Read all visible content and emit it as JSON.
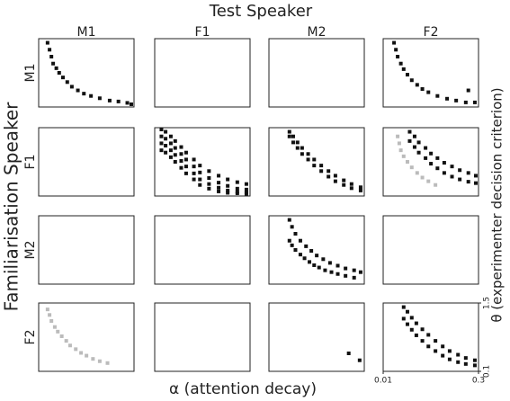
{
  "chart_data": {
    "type": "scatter",
    "title": "Test Speaker",
    "xlabel": "α (attention decay)",
    "ylabel": "Familiarisation Speaker",
    "y2label": "θ (experimenter decision criterion)",
    "columns": [
      "M1",
      "F1",
      "M2",
      "F2"
    ],
    "rows": [
      "M1",
      "F1",
      "M2",
      "F2"
    ],
    "xscale": "log",
    "xlim": [
      0.01,
      0.3
    ],
    "xticks": [
      0.01,
      0.3
    ],
    "ylim": [
      0.1,
      1.5
    ],
    "yticks": [
      0.1,
      1.5
    ],
    "panels": [
      [
        {
          "series": [
            {
              "color": "#111111",
              "x": [
                0.013,
                0.014,
                0.015,
                0.016,
                0.018,
                0.02,
                0.023,
                0.027,
                0.032,
                0.04,
                0.05,
                0.065,
                0.09,
                0.13,
                0.18,
                0.25,
                0.29
              ],
              "y": [
                1.45,
                1.3,
                1.15,
                1.0,
                0.9,
                0.8,
                0.7,
                0.6,
                0.5,
                0.42,
                0.35,
                0.3,
                0.25,
                0.2,
                0.18,
                0.15,
                0.12
              ]
            }
          ]
        },
        {
          "series": []
        },
        {
          "series": []
        },
        {
          "series": [
            {
              "color": "#111111",
              "x": [
                0.014,
                0.015,
                0.016,
                0.018,
                0.02,
                0.023,
                0.027,
                0.033,
                0.04,
                0.05,
                0.07,
                0.1,
                0.14,
                0.2,
                0.22,
                0.28
              ],
              "y": [
                1.45,
                1.3,
                1.15,
                1.0,
                0.88,
                0.76,
                0.64,
                0.54,
                0.45,
                0.38,
                0.3,
                0.24,
                0.2,
                0.16,
                0.42,
                0.16
              ]
            }
          ]
        }
      ],
      [
        {
          "series": []
        },
        {
          "series": [
            {
              "color": "#111111",
              "x": [
                0.012,
                0.014,
                0.017,
                0.02,
                0.025,
                0.03,
                0.04,
                0.05,
                0.07,
                0.1,
                0.14,
                0.2,
                0.28,
                0.012,
                0.014,
                0.017,
                0.02,
                0.025,
                0.03,
                0.04,
                0.05,
                0.07,
                0.1,
                0.14,
                0.2,
                0.28,
                0.012,
                0.014,
                0.017,
                0.02,
                0.025,
                0.03,
                0.04,
                0.05,
                0.07,
                0.1,
                0.14,
                0.2,
                0.28,
                0.012,
                0.014,
                0.017,
                0.02,
                0.025,
                0.03,
                0.04,
                0.05,
                0.07,
                0.1,
                0.14,
                0.2,
                0.28
              ],
              "y": [
                1.5,
                1.45,
                1.35,
                1.25,
                1.12,
                1.0,
                0.85,
                0.72,
                0.6,
                0.5,
                0.42,
                0.36,
                0.32,
                1.35,
                1.3,
                1.2,
                1.1,
                0.97,
                0.85,
                0.7,
                0.57,
                0.45,
                0.35,
                0.28,
                0.22,
                0.2,
                1.2,
                1.15,
                1.05,
                0.95,
                0.82,
                0.7,
                0.55,
                0.42,
                0.32,
                0.24,
                0.18,
                0.15,
                0.14,
                1.05,
                1.0,
                0.9,
                0.8,
                0.67,
                0.55,
                0.42,
                0.3,
                0.22,
                0.16,
                0.13,
                0.12,
                0.11
              ]
            }
          ]
        },
        {
          "series": [
            {
              "color": "#111111",
              "x": [
                0.02,
                0.023,
                0.027,
                0.032,
                0.04,
                0.05,
                0.065,
                0.085,
                0.11,
                0.15,
                0.2,
                0.28,
                0.02,
                0.023,
                0.027,
                0.032,
                0.04,
                0.05,
                0.065,
                0.085,
                0.11,
                0.15,
                0.2,
                0.28
              ],
              "y": [
                1.45,
                1.35,
                1.22,
                1.1,
                0.97,
                0.85,
                0.72,
                0.6,
                0.5,
                0.4,
                0.32,
                0.25,
                1.35,
                1.22,
                1.1,
                0.97,
                0.85,
                0.72,
                0.6,
                0.48,
                0.38,
                0.3,
                0.23,
                0.18
              ]
            }
          ]
        },
        {
          "series": [
            {
              "color": "#bbbbbb",
              "x": [
                0.016,
                0.017,
                0.018,
                0.02,
                0.023,
                0.027,
                0.033,
                0.04,
                0.05,
                0.065
              ],
              "y": [
                1.35,
                1.2,
                1.05,
                0.92,
                0.8,
                0.68,
                0.56,
                0.46,
                0.38,
                0.3
              ]
            },
            {
              "color": "#111111",
              "x": [
                0.025,
                0.03,
                0.035,
                0.045,
                0.055,
                0.07,
                0.09,
                0.12,
                0.16,
                0.22,
                0.29,
                0.025,
                0.03,
                0.035,
                0.045,
                0.055,
                0.07,
                0.09,
                0.12,
                0.16,
                0.22,
                0.29
              ],
              "y": [
                1.45,
                1.35,
                1.22,
                1.1,
                0.98,
                0.88,
                0.78,
                0.7,
                0.62,
                0.56,
                0.5,
                1.25,
                1.12,
                1.0,
                0.88,
                0.76,
                0.66,
                0.56,
                0.48,
                0.42,
                0.37,
                0.34
              ]
            }
          ]
        }
      ],
      [
        {
          "series": []
        },
        {
          "series": []
        },
        {
          "series": [
            {
              "color": "#111111",
              "x": [
                0.02,
                0.022,
                0.025,
                0.03,
                0.037,
                0.045,
                0.055,
                0.07,
                0.09,
                0.12,
                0.16,
                0.22,
                0.28,
                0.02,
                0.022,
                0.025,
                0.03,
                0.035,
                0.042,
                0.05,
                0.06,
                0.075,
                0.095,
                0.12,
                0.16,
                0.22
              ],
              "y": [
                1.45,
                1.3,
                1.15,
                1.0,
                0.88,
                0.78,
                0.68,
                0.6,
                0.52,
                0.46,
                0.4,
                0.36,
                0.32,
                1.0,
                0.9,
                0.8,
                0.7,
                0.62,
                0.54,
                0.47,
                0.42,
                0.36,
                0.32,
                0.28,
                0.24,
                0.2
              ]
            }
          ]
        },
        {
          "series": []
        }
      ],
      [
        {
          "series": [
            {
              "color": "#bbbbbb",
              "x": [
                0.013,
                0.014,
                0.015,
                0.017,
                0.019,
                0.022,
                0.026,
                0.03,
                0.037,
                0.045,
                0.055,
                0.07,
                0.09,
                0.12
              ],
              "y": [
                1.4,
                1.28,
                1.15,
                1.02,
                0.92,
                0.82,
                0.72,
                0.62,
                0.54,
                0.46,
                0.4,
                0.33,
                0.28,
                0.24
              ]
            }
          ]
        },
        {
          "series": []
        },
        {
          "series": [
            {
              "color": "#111111",
              "x": [
                0.18,
                0.27
              ],
              "y": [
                0.45,
                0.3
              ]
            }
          ]
        },
        {
          "series": [
            {
              "color": "#111111",
              "x": [
                0.02,
                0.023,
                0.027,
                0.032,
                0.04,
                0.05,
                0.065,
                0.085,
                0.11,
                0.15,
                0.2,
                0.28,
                0.02,
                0.023,
                0.027,
                0.032,
                0.04,
                0.05,
                0.065,
                0.085,
                0.11,
                0.15,
                0.2,
                0.28
              ],
              "y": [
                1.45,
                1.35,
                1.22,
                1.1,
                0.97,
                0.85,
                0.72,
                0.6,
                0.5,
                0.42,
                0.35,
                0.3,
                1.2,
                1.08,
                0.96,
                0.84,
                0.72,
                0.6,
                0.5,
                0.4,
                0.32,
                0.26,
                0.22,
                0.19
              ]
            }
          ]
        }
      ]
    ]
  }
}
